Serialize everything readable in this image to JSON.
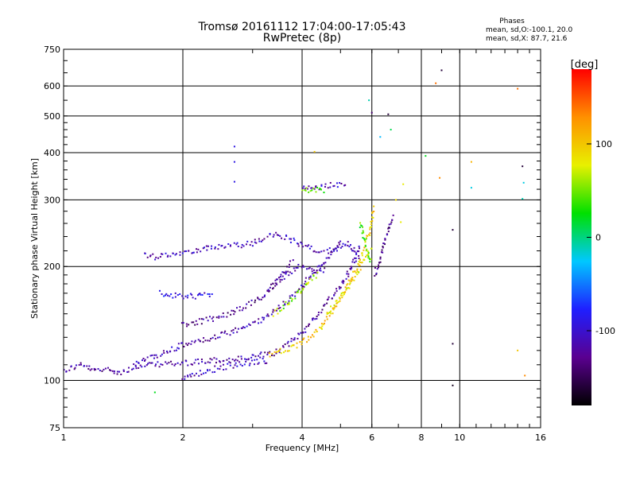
{
  "chart_data": {
    "type": "scatter",
    "title": "Tromsø 20161112 17:04:00-17:05:43",
    "subtitle": "RwPretec (8p)",
    "xlabel": "Frequency [MHz]",
    "ylabel": "Stationary phase Virtual Height [km]",
    "x_scale": "log",
    "y_scale": "log",
    "xlim": [
      1,
      16
    ],
    "ylim": [
      75,
      750
    ],
    "x_ticks": [
      1,
      2,
      4,
      6,
      8,
      10,
      16
    ],
    "y_ticks": [
      75,
      100,
      200,
      300,
      400,
      500,
      600,
      750
    ],
    "grid": true,
    "phases_legend": {
      "heading": "Phases",
      "o_line": "mean, sd,O:-100.1, 20.0",
      "x_line": "mean, sd,X: 87.7, 21.6"
    },
    "colorbar": {
      "label": "[deg]",
      "ticks": [
        100,
        0,
        -100
      ],
      "range": [
        -180,
        180
      ],
      "colors": [
        "#000000",
        "#5a0090",
        "#1f1fff",
        "#00c8ff",
        "#00e000",
        "#e8f000",
        "#ff9000",
        "#ff0000"
      ]
    },
    "traces": [
      {
        "name": "",
        "phase": -120,
        "points": [
          [
            1.0,
            106
          ],
          [
            1.05,
            108
          ],
          [
            1.1,
            110
          ],
          [
            1.15,
            108
          ],
          [
            1.2,
            106
          ],
          [
            1.3,
            107
          ],
          [
            1.4,
            105
          ],
          [
            1.5,
            108
          ],
          [
            1.6,
            109
          ],
          [
            1.7,
            110
          ],
          [
            1.8,
            111
          ],
          [
            1.9,
            110
          ],
          [
            2.0,
            111
          ],
          [
            2.2,
            112
          ],
          [
            2.4,
            113
          ],
          [
            2.6,
            113
          ],
          [
            2.8,
            114
          ],
          [
            3.0,
            115
          ],
          [
            3.2,
            117
          ],
          [
            3.4,
            118
          ],
          [
            3.6,
            122
          ],
          [
            3.8,
            128
          ],
          [
            4.0,
            134
          ],
          [
            4.2,
            142
          ],
          [
            4.4,
            150
          ],
          [
            4.6,
            160
          ],
          [
            4.8,
            168
          ],
          [
            5.0,
            178
          ],
          [
            5.2,
            190
          ],
          [
            5.4,
            205
          ],
          [
            5.6,
            230
          ]
        ]
      },
      {
        "name": "",
        "phase": -115,
        "points": [
          [
            1.5,
            110
          ],
          [
            1.6,
            113
          ],
          [
            1.7,
            116
          ],
          [
            1.8,
            118
          ],
          [
            1.9,
            121
          ],
          [
            2.0,
            124
          ],
          [
            2.2,
            127
          ],
          [
            2.4,
            130
          ],
          [
            2.6,
            133
          ],
          [
            2.8,
            137
          ],
          [
            3.0,
            141
          ],
          [
            3.2,
            146
          ],
          [
            3.4,
            152
          ],
          [
            3.6,
            160
          ],
          [
            3.8,
            168
          ],
          [
            4.0,
            178
          ],
          [
            4.2,
            188
          ],
          [
            4.4,
            198
          ],
          [
            4.6,
            208
          ],
          [
            4.8,
            220
          ],
          [
            5.0,
            235
          ]
        ]
      },
      {
        "name": "",
        "phase": -110,
        "points": [
          [
            1.6,
            215
          ],
          [
            1.7,
            212
          ],
          [
            1.8,
            215
          ],
          [
            1.9,
            216
          ],
          [
            2.0,
            218
          ],
          [
            2.2,
            222
          ],
          [
            2.4,
            224
          ],
          [
            2.6,
            226
          ],
          [
            2.8,
            228
          ],
          [
            3.0,
            230
          ],
          [
            3.2,
            237
          ],
          [
            3.4,
            242
          ],
          [
            3.6,
            240
          ],
          [
            3.8,
            234
          ],
          [
            4.0,
            228
          ],
          [
            4.2,
            224
          ],
          [
            4.4,
            221
          ],
          [
            4.6,
            219
          ],
          [
            4.8,
            221
          ],
          [
            5.0,
            226
          ],
          [
            5.2,
            232
          ],
          [
            5.4,
            222
          ],
          [
            5.6,
            212
          ]
        ]
      },
      {
        "name": "",
        "phase": -95,
        "points": [
          [
            1.75,
            170
          ],
          [
            1.85,
            168
          ],
          [
            1.95,
            167
          ],
          [
            2.05,
            167
          ],
          [
            2.15,
            167
          ],
          [
            2.25,
            168
          ],
          [
            2.4,
            168
          ]
        ]
      },
      {
        "name": "",
        "phase": -125,
        "points": [
          [
            2.0,
            140
          ],
          [
            2.2,
            143
          ],
          [
            2.4,
            146
          ],
          [
            2.6,
            150
          ],
          [
            2.8,
            155
          ],
          [
            3.0,
            160
          ],
          [
            3.2,
            168
          ],
          [
            3.4,
            178
          ],
          [
            3.6,
            192
          ],
          [
            3.8,
            208
          ]
        ]
      },
      {
        "name": "",
        "phase": -118,
        "points": [
          [
            3.3,
            175
          ],
          [
            3.5,
            185
          ],
          [
            3.7,
            192
          ],
          [
            3.9,
            200
          ],
          [
            4.1,
            198
          ],
          [
            4.3,
            195
          ],
          [
            4.6,
            195
          ]
        ]
      },
      {
        "name": "",
        "phase": -110,
        "points": [
          [
            4.0,
            320
          ],
          [
            4.2,
            322
          ],
          [
            4.4,
            325
          ],
          [
            4.6,
            327
          ],
          [
            4.8,
            330
          ],
          [
            5.0,
            328
          ],
          [
            5.2,
            330
          ]
        ]
      },
      {
        "name": "",
        "phase": -130,
        "points": [
          [
            6.1,
            190
          ],
          [
            6.2,
            200
          ],
          [
            6.3,
            210
          ],
          [
            6.4,
            222
          ],
          [
            6.5,
            235
          ],
          [
            6.6,
            250
          ],
          [
            6.7,
            265
          ],
          [
            6.8,
            275
          ]
        ]
      },
      {
        "name": "",
        "phase": -110,
        "points": [
          [
            2.0,
            100
          ],
          [
            2.1,
            103
          ],
          [
            2.3,
            106
          ],
          [
            2.5,
            108
          ],
          [
            2.7,
            110
          ],
          [
            2.9,
            111
          ],
          [
            3.1,
            112
          ],
          [
            3.3,
            113
          ]
        ]
      },
      {
        "name": "",
        "phase": 100,
        "points": [
          [
            3.3,
            117
          ],
          [
            3.5,
            119
          ],
          [
            3.7,
            121
          ],
          [
            3.9,
            124
          ],
          [
            4.1,
            128
          ],
          [
            4.3,
            133
          ],
          [
            4.5,
            140
          ],
          [
            4.7,
            150
          ],
          [
            4.9,
            160
          ],
          [
            5.1,
            170
          ],
          [
            5.3,
            185
          ],
          [
            5.5,
            200
          ],
          [
            5.7,
            220
          ],
          [
            5.9,
            245
          ],
          [
            6.0,
            270
          ],
          [
            6.1,
            290
          ]
        ]
      },
      {
        "name": "",
        "phase": 85,
        "points": [
          [
            4.6,
            150
          ],
          [
            4.8,
            158
          ],
          [
            5.0,
            166
          ],
          [
            5.2,
            176
          ],
          [
            5.4,
            186
          ],
          [
            5.6,
            198
          ],
          [
            5.8,
            212
          ],
          [
            6.0,
            226
          ]
        ]
      },
      {
        "name": "",
        "phase": 60,
        "points": [
          [
            3.4,
            150
          ],
          [
            3.6,
            158
          ],
          [
            3.8,
            166
          ],
          [
            4.0,
            175
          ],
          [
            4.2,
            185
          ],
          [
            4.4,
            192
          ]
        ]
      },
      {
        "name": "",
        "phase": 50,
        "points": [
          [
            4.0,
            320
          ],
          [
            4.2,
            318
          ],
          [
            4.4,
            318
          ],
          [
            4.6,
            319
          ]
        ]
      },
      {
        "name": "",
        "phase": 40,
        "points": [
          [
            5.6,
            260
          ],
          [
            5.7,
            245
          ],
          [
            5.8,
            228
          ],
          [
            5.9,
            212
          ],
          [
            6.0,
            205
          ]
        ]
      }
    ],
    "isolated_points": [
      [
        2.7,
        415,
        -90
      ],
      [
        2.7,
        378,
        -90
      ],
      [
        2.7,
        335,
        -90
      ],
      [
        9.0,
        660,
        -160
      ],
      [
        8.7,
        610,
        140
      ],
      [
        6.6,
        505,
        -160
      ],
      [
        6.0,
        510,
        -140
      ],
      [
        6.7,
        460,
        10
      ],
      [
        4.3,
        402,
        100
      ],
      [
        8.2,
        392,
        20
      ],
      [
        8.9,
        343,
        130
      ],
      [
        9.6,
        250,
        -160
      ],
      [
        9.6,
        125,
        -160
      ],
      [
        9.6,
        97,
        -170
      ],
      [
        10.7,
        378,
        110
      ],
      [
        10.7,
        323,
        -20
      ],
      [
        14.4,
        368,
        -160
      ],
      [
        14.5,
        333,
        -20
      ],
      [
        14.4,
        302,
        -10
      ],
      [
        14.0,
        590,
        140
      ],
      [
        14.0,
        120,
        100
      ],
      [
        14.6,
        103,
        130
      ],
      [
        1.7,
        93,
        20
      ],
      [
        7.1,
        262,
        80
      ],
      [
        7.2,
        330,
        80
      ],
      [
        6.9,
        300,
        90
      ],
      [
        6.3,
        440,
        -30
      ],
      [
        5.9,
        550,
        -10
      ]
    ]
  }
}
